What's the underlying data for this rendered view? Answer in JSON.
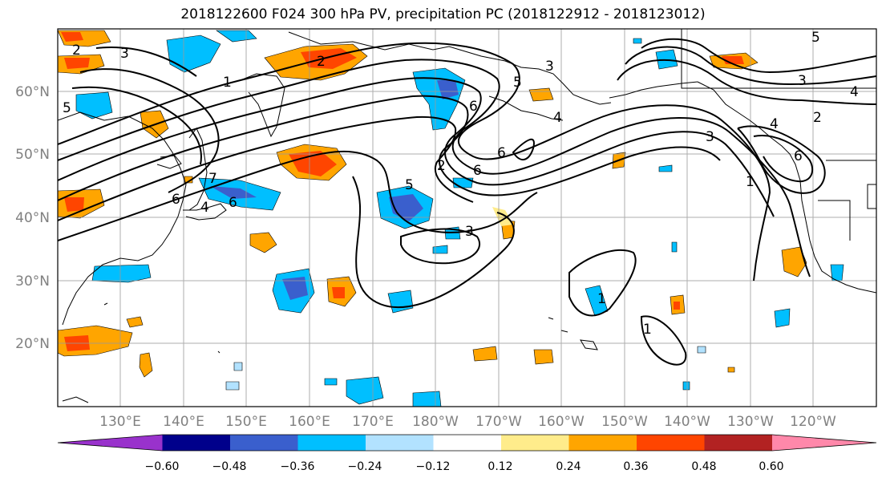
{
  "title": "2018122600 F024 300 hPa PV, precipitation PC (2018122912 - 2018123012)",
  "lat_labels": [
    "60°N",
    "50°N",
    "40°N",
    "30°N",
    "20°N"
  ],
  "lon_labels": [
    "130°E",
    "140°E",
    "150°E",
    "160°E",
    "170°E",
    "180°W",
    "170°W",
    "160°W",
    "150°W",
    "140°W",
    "130°W",
    "120°W"
  ],
  "colorbar": {
    "colors": [
      "#9932CC",
      "#00008B",
      "#3A5FCD",
      "#00BFFF",
      "#B2E2FF",
      "#FFFFFF",
      "#FFEC8B",
      "#FFA500",
      "#FF4500",
      "#B22222",
      "#FF88AA"
    ],
    "tick_labels": [
      "−0.60",
      "−0.48",
      "−0.36",
      "−0.24",
      "−0.12",
      "0.12",
      "0.24",
      "0.36",
      "0.48",
      "0.60"
    ]
  },
  "contour_labels": [
    "3",
    "1",
    "2",
    "6",
    "5",
    "4",
    "2",
    "6",
    "3",
    "6",
    "5",
    "3",
    "1",
    "1",
    "3",
    "4",
    "6",
    "1",
    "4",
    "5",
    "2",
    "3",
    "7",
    "6",
    "4",
    "2",
    "5",
    "6"
  ]
}
